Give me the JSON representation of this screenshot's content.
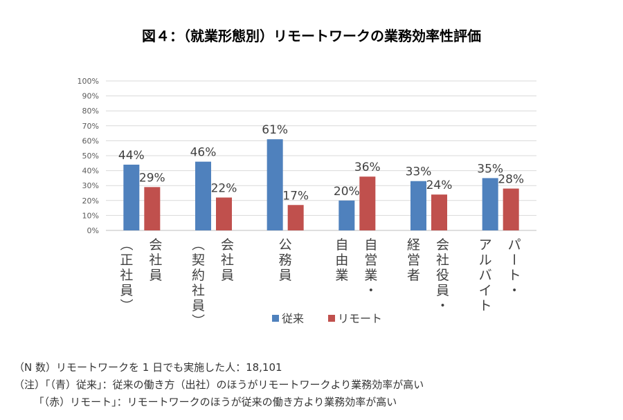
{
  "title": "図４：（就業形態別）リモートワークの業務効率性評価",
  "chart_data": {
    "type": "bar",
    "categories": [
      {
        "lines": [
          "会社員",
          "（正社員）"
        ]
      },
      {
        "lines": [
          "会社員",
          "（契約社員）"
        ]
      },
      {
        "lines": [
          "公務員"
        ]
      },
      {
        "lines": [
          "自営業・",
          "自由業"
        ]
      },
      {
        "lines": [
          "会社役員・",
          "経営者"
        ]
      },
      {
        "lines": [
          "パート・",
          "アルバイト"
        ]
      }
    ],
    "series": [
      {
        "name": "従来",
        "color": "#4f81bd",
        "values": [
          44,
          46,
          61,
          20,
          33,
          35
        ],
        "labels": [
          "44%",
          "46%",
          "61%",
          "20%",
          "33%",
          "35%"
        ]
      },
      {
        "name": "リモート",
        "color": "#c0504d",
        "values": [
          29,
          22,
          17,
          36,
          24,
          28
        ],
        "labels": [
          "29%",
          "22%",
          "17%",
          "36%",
          "24%",
          "28%"
        ]
      }
    ],
    "ylim": [
      0,
      100
    ],
    "yticks": [
      "0%",
      "10%",
      "20%",
      "30%",
      "40%",
      "50%",
      "60%",
      "70%",
      "80%",
      "90%",
      "100%"
    ],
    "grid": true,
    "legend_position": "bottom"
  },
  "notes": [
    "（N 数）リモートワークを 1 日でも実施した人：18,101",
    "（注）「（青）従来」：従来の働き方（出社）のほうがリモートワークより業務効率が高い",
    "      「（赤）リモート」：リモートワークのほうが従来の働き方より業務効率が高い"
  ]
}
